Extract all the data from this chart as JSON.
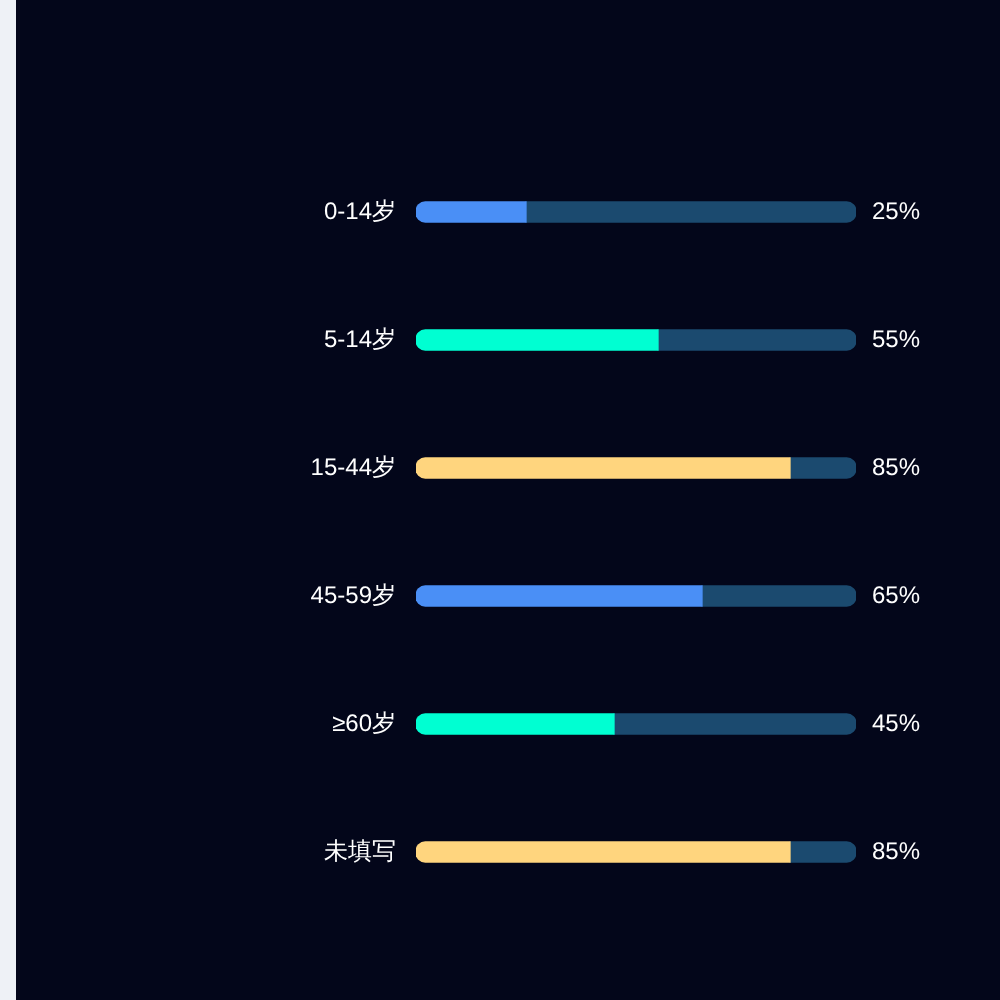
{
  "chart_data": {
    "type": "bar",
    "orientation": "horizontal",
    "stacked": true,
    "categories": [
      "0-14岁",
      "5-14岁",
      "15-44岁",
      "45-59岁",
      "≥60岁",
      "未填写"
    ],
    "series": [
      {
        "colors": [
          "#4a8ff6",
          "#00ffd2",
          "#ffd57e",
          "#4a8ff6",
          "#00ffd2",
          "#ffd57e"
        ],
        "values": [
          25,
          55,
          85,
          65,
          45,
          85
        ],
        "value_labels": [
          "25%",
          "55%",
          "85%",
          "65%",
          "45%",
          "85%"
        ]
      },
      {
        "color": "#1b4a6f",
        "values": [
          75,
          45,
          15,
          35,
          55,
          15
        ]
      }
    ],
    "xlim": [
      0,
      100
    ],
    "tick_labels": "y",
    "legend": false
  }
}
